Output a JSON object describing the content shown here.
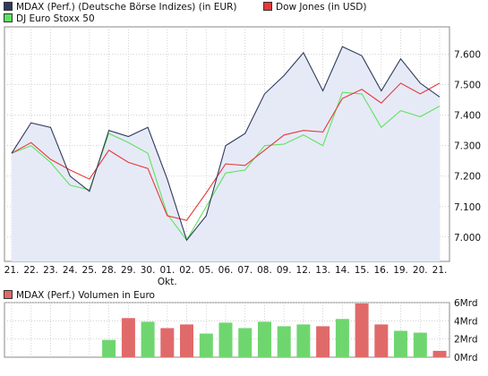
{
  "colors": {
    "mdax": "#2f3a5c",
    "mdax_fill": "#e6eaf7",
    "dow": "#e8383a",
    "stoxx": "#5ee25e",
    "vol_up": "#6fd66f",
    "vol_down": "#e06a6a",
    "grid": "#c8c8c8"
  },
  "chart_data": [
    {
      "type": "line",
      "categories": [
        "21.",
        "22.",
        "23.",
        "24.",
        "25.",
        "28.",
        "29.",
        "30.",
        "01.",
        "02.",
        "05.",
        "06.",
        "07.",
        "08.",
        "09.",
        "12.",
        "13.",
        "14.",
        "15.",
        "16.",
        "19.",
        "20.",
        "21."
      ],
      "month_label": "Okt.",
      "month_label_index": 8,
      "series": [
        {
          "name": "MDAX (Perf.) (Deutsche Börse Indizes) (in EUR)",
          "values": [
            7275,
            7375,
            7360,
            7200,
            7150,
            7350,
            7330,
            7360,
            7190,
            6990,
            7070,
            7300,
            7340,
            7470,
            7530,
            7605,
            7480,
            7625,
            7595,
            7480,
            7585,
            7505,
            7460
          ]
        },
        {
          "name": "Dow Jones (in USD)",
          "values": [
            7275,
            7310,
            7255,
            7220,
            7190,
            7285,
            7245,
            7225,
            7070,
            7055,
            7145,
            7240,
            7235,
            7285,
            7335,
            7350,
            7345,
            7455,
            7485,
            7440,
            7505,
            7470,
            7505
          ]
        },
        {
          "name": "DJ Euro Stoxx 50",
          "values": [
            7275,
            7300,
            7245,
            7170,
            7155,
            7340,
            7310,
            7275,
            7075,
            6990,
            7100,
            7210,
            7220,
            7300,
            7305,
            7335,
            7300,
            7475,
            7470,
            7360,
            7415,
            7395,
            7430
          ]
        }
      ],
      "yticks": [
        "7.600",
        "7.500",
        "7.400",
        "7.300",
        "7.200",
        "7.100",
        "7.000"
      ],
      "ylim": [
        6920,
        7690
      ],
      "grid": true
    },
    {
      "type": "bar",
      "title": "MDAX (Perf.) Volumen in Euro",
      "categories": [
        "21.",
        "22.",
        "23.",
        "24.",
        "25.",
        "28.",
        "29.",
        "30.",
        "01.",
        "02.",
        "05.",
        "06.",
        "07.",
        "08.",
        "09.",
        "12.",
        "13.",
        "14.",
        "15.",
        "16.",
        "19.",
        "20.",
        "21."
      ],
      "values": [
        null,
        null,
        null,
        null,
        null,
        1.9,
        4.3,
        3.9,
        3.2,
        3.6,
        2.6,
        3.8,
        3.2,
        3.9,
        3.4,
        3.6,
        3.4,
        4.2,
        5.9,
        3.6,
        2.9,
        2.7,
        0.7
      ],
      "directions": [
        null,
        null,
        null,
        null,
        null,
        "up",
        "down",
        "up",
        "down",
        "down",
        "up",
        "up",
        "up",
        "up",
        "up",
        "up",
        "down",
        "up",
        "down",
        "down",
        "up",
        "up",
        "down"
      ],
      "yticks": [
        "6Mrd",
        "4Mrd",
        "2Mrd",
        "0Mrd"
      ],
      "ylim": [
        0,
        6
      ],
      "grid": true
    }
  ]
}
